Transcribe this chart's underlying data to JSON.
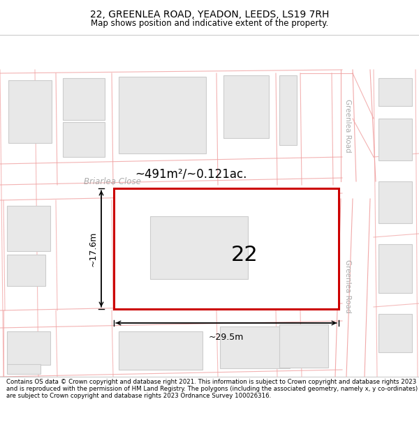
{
  "title": "22, GREENLEA ROAD, YEADON, LEEDS, LS19 7RH",
  "subtitle": "Map shows position and indicative extent of the property.",
  "footer": "Contains OS data © Crown copyright and database right 2021. This information is subject to Crown copyright and database rights 2023 and is reproduced with the permission of HM Land Registry. The polygons (including the associated geometry, namely x, y co-ordinates) are subject to Crown copyright and database rights 2023 Ordnance Survey 100026316.",
  "map_bg": "#ffffff",
  "plot_line_color": "#f0a0a0",
  "building_fill": "#e8e8e8",
  "building_edge": "#cccccc",
  "highlight_color": "#cc0000",
  "area_label": "~491m²/~0.121ac.",
  "width_label": "~29.5m",
  "height_label": "~17.6m",
  "number_label": "22",
  "road_label_top": "Greenlea Road",
  "road_label_bottom": "Greenlea Road",
  "street_label": "Briarlea Close",
  "title_fontsize": 10,
  "subtitle_fontsize": 8.5,
  "footer_fontsize": 6.2,
  "road_text_color": "#aaaaaa",
  "street_text_color": "#aaaaaa",
  "dim_text_color": "#000000",
  "area_text_color": "#000000"
}
